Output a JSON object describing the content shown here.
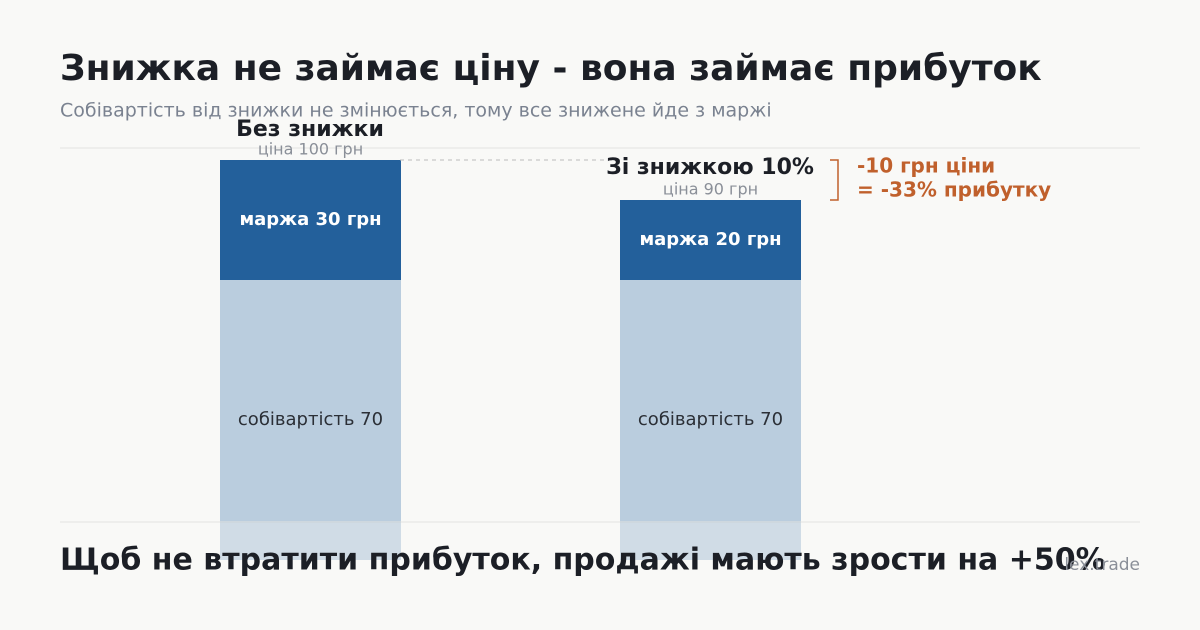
{
  "chart_data": {
    "type": "stacked_bar",
    "title": "Знижка не займає ціну - вона займає прибуток",
    "subtitle": "Собівартість від знижки не змінюється, тому все знижене йде з маржі",
    "categories": [
      "Без знижки",
      "Зі знижкою 10%"
    ],
    "total_labels": [
      "ціна 100 грн",
      "ціна 90 грн"
    ],
    "series": [
      {
        "color": "#bacdde",
        "values": [
          70,
          70
        ],
        "value_labels": [
          "собівартість 70",
          "собівартість 70"
        ]
      },
      {
        "color": "#23609b",
        "values": [
          30,
          20
        ],
        "value_labels": [
          "маржа 30 грн",
          "маржа 20 грн"
        ]
      }
    ],
    "annotations": [
      "-10 грн ціни",
      "= -33% прибутку"
    ],
    "footer": "Щоб не втратити прибуток, продажі мають зрости на +50%",
    "source": "lex.trade"
  }
}
